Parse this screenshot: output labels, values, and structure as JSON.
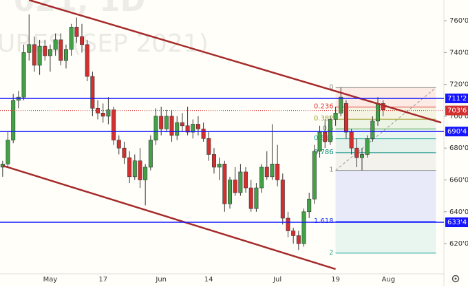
{
  "chart_data": {
    "type": "candlestick",
    "watermark_top": "021, 1D",
    "watermark": "URES (SEP 2021)",
    "categories": [
      null,
      null,
      null,
      null,
      null,
      null,
      null,
      null,
      null,
      "May",
      null,
      null,
      null,
      null,
      null,
      null,
      null,
      null,
      null,
      "17",
      null,
      null,
      null,
      null,
      null,
      null,
      null,
      null,
      null,
      null,
      "Jun",
      null,
      null,
      null,
      null,
      null,
      null,
      null,
      null,
      "14",
      null,
      null,
      null,
      null,
      null,
      null,
      null,
      null,
      null,
      null,
      null,
      null,
      "Jul",
      null,
      null,
      null,
      null,
      null,
      null,
      null,
      null,
      null,
      null,
      "19",
      null,
      null,
      null,
      null,
      null,
      null,
      null,
      null,
      null,
      "Aug",
      null,
      null,
      null,
      null,
      null,
      null,
      null,
      null,
      null,
      null
    ],
    "open": [
      668,
      670,
      685,
      710,
      712,
      740,
      745,
      732,
      744,
      738,
      742,
      748,
      735,
      742,
      756,
      750,
      745,
      725,
      705,
      702,
      700,
      704,
      685,
      680,
      674,
      662,
      672,
      660,
      668,
      685,
      700,
      692,
      700,
      688,
      696,
      694,
      690,
      695,
      692,
      686,
      676,
      668,
      670,
      645,
      660,
      652,
      665,
      655,
      642,
      655,
      668,
      662,
      670,
      660,
      636,
      628,
      625,
      620,
      640,
      648,
      678,
      690,
      684,
      698,
      702,
      708,
      690,
      680,
      674,
      676,
      686,
      697,
      708,
      null,
      null,
      null,
      null,
      null,
      null,
      null,
      null,
      null,
      null,
      null
    ],
    "high": [
      672,
      690,
      714,
      716,
      745,
      764,
      750,
      748,
      748,
      745,
      752,
      752,
      745,
      758,
      762,
      758,
      748,
      728,
      710,
      708,
      712,
      706,
      688,
      684,
      678,
      676,
      680,
      670,
      688,
      705,
      706,
      704,
      704,
      700,
      702,
      706,
      698,
      700,
      696,
      690,
      680,
      674,
      672,
      662,
      668,
      670,
      668,
      660,
      658,
      670,
      678,
      695,
      682,
      664,
      640,
      630,
      628,
      642,
      652,
      682,
      694,
      698,
      700,
      706,
      718,
      710,
      692,
      686,
      680,
      688,
      700,
      712,
      710,
      null,
      null,
      null,
      null,
      null,
      null,
      null,
      null,
      null,
      null,
      null
    ],
    "low": [
      662,
      668,
      683,
      705,
      710,
      735,
      728,
      726,
      735,
      728,
      738,
      732,
      730,
      738,
      746,
      740,
      722,
      700,
      698,
      696,
      695,
      682,
      676,
      670,
      658,
      660,
      655,
      644,
      666,
      682,
      688,
      690,
      684,
      685,
      690,
      688,
      686,
      688,
      684,
      672,
      664,
      660,
      640,
      642,
      650,
      650,
      652,
      640,
      640,
      652,
      660,
      660,
      656,
      632,
      624,
      620,
      616,
      618,
      636,
      645,
      674,
      680,
      682,
      694,
      700,
      686,
      676,
      668,
      666,
      674,
      684,
      694,
      700,
      null,
      null,
      null,
      null,
      null,
      null,
      null,
      null,
      null,
      null,
      null
    ],
    "close": [
      670,
      685,
      710,
      712,
      740,
      745,
      732,
      744,
      738,
      742,
      748,
      735,
      742,
      756,
      750,
      745,
      725,
      705,
      702,
      700,
      704,
      685,
      680,
      674,
      662,
      672,
      660,
      668,
      685,
      700,
      692,
      700,
      688,
      696,
      694,
      690,
      695,
      692,
      686,
      676,
      668,
      670,
      645,
      660,
      652,
      665,
      655,
      642,
      655,
      668,
      662,
      670,
      660,
      636,
      628,
      625,
      620,
      640,
      648,
      678,
      690,
      684,
      698,
      702,
      712,
      690,
      680,
      674,
      676,
      686,
      697,
      708,
      704,
      null,
      null,
      null,
      null,
      null,
      null,
      null,
      null,
      null,
      null,
      null
    ],
    "up_color": "#43a047",
    "down_color": "#d32f2f",
    "ylim": [
      601,
      773
    ],
    "yticks": [
      {
        "value": 620,
        "label": "620'0"
      },
      {
        "value": 640,
        "label": "640'0"
      },
      {
        "value": 660,
        "label": "660'0"
      },
      {
        "value": 680,
        "label": "680'0"
      },
      {
        "value": 700,
        "label": "700'0"
      },
      {
        "value": 720,
        "label": "720'0"
      },
      {
        "value": 740,
        "label": "740'0"
      },
      {
        "value": 760,
        "label": "760'0"
      }
    ],
    "levels": [
      {
        "value": 711.2,
        "label": "711'2"
      },
      {
        "value": 690.4,
        "label": "690'4"
      },
      {
        "value": 633.4,
        "label": "633'4"
      }
    ],
    "level_color": "#1515ff",
    "last_price": {
      "value": 703.6,
      "label": "703'6"
    },
    "trendlines": [
      {
        "x": [
          5,
          83
        ],
        "y": [
          773,
          696
        ]
      },
      {
        "x": [
          0,
          63
        ],
        "y": [
          669,
          604
        ]
      }
    ],
    "trendline_color": "#a52a2a",
    "fib": {
      "high": 718,
      "low": 666,
      "x_from": 63,
      "x_to": 82,
      "levels": [
        0,
        0.236,
        0.382,
        0.5,
        0.618,
        0.786,
        1,
        1.618,
        2
      ],
      "colors": [
        "#888888",
        "#e53935",
        "#9e9d24",
        "#43a047",
        "#26a69a",
        "#00897b",
        "#888888",
        "#1e3cff",
        "#26a69a"
      ]
    }
  }
}
